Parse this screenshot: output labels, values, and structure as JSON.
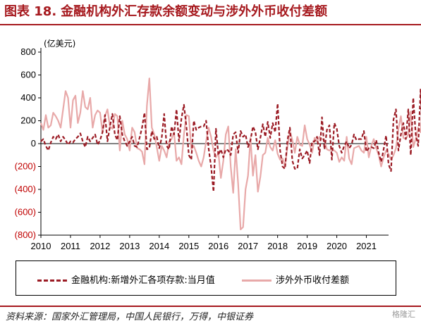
{
  "header": {
    "figure_label": "图表 18.",
    "title": "金融机构外汇存款余额变动与涉外外币收付差额"
  },
  "chart_data": {
    "type": "line",
    "unit_label": "(亿美元)",
    "ylim": [
      -800,
      800
    ],
    "yticks": [
      800,
      600,
      400,
      200,
      0,
      -200,
      -400,
      -600,
      -800
    ],
    "ytick_labels": [
      "800",
      "600",
      "400",
      "200",
      "0",
      "(200)",
      "(400)",
      "(600)",
      "(800)"
    ],
    "xlim": [
      2010,
      2021.75
    ],
    "xticks": [
      "2010",
      "2011",
      "2012",
      "2013",
      "2014",
      "2015",
      "2016",
      "2017",
      "2018",
      "2019",
      "2020",
      "2021"
    ],
    "x_start": "2010-01",
    "series": [
      {
        "name": "金融机构:新增外汇各项存款:当月值",
        "color": "#9b1b24",
        "style": "dashed",
        "values": [
          20,
          40,
          -20,
          -60,
          10,
          60,
          40,
          80,
          20,
          60,
          30,
          -10,
          20,
          10,
          40,
          60,
          90,
          20,
          -30,
          60,
          20,
          50,
          80,
          -10,
          30,
          100,
          250,
          20,
          150,
          260,
          80,
          30,
          240,
          80,
          20,
          -20,
          20,
          60,
          -20,
          -30,
          50,
          140,
          270,
          -50,
          -40,
          110,
          40,
          60,
          -40,
          50,
          260,
          -20,
          -50,
          150,
          80,
          300,
          20,
          220,
          340,
          150,
          -100,
          -140,
          200,
          120,
          140,
          150,
          150,
          200,
          -40,
          -200,
          -420,
          130,
          -100,
          -50,
          -120,
          -50,
          -60,
          -100,
          80,
          100,
          -80,
          110,
          60,
          80,
          -30,
          30,
          150,
          100,
          -50,
          50,
          170,
          60,
          190,
          50,
          180,
          100,
          350,
          -60,
          -200,
          -220,
          30,
          140,
          -150,
          -220,
          -220,
          -50,
          -130,
          -100,
          -60,
          -170,
          20,
          20,
          60,
          -100,
          230,
          -50,
          120,
          160,
          -140,
          180,
          130,
          -20,
          -80,
          -20,
          20,
          -40,
          -10,
          80,
          30,
          40,
          40,
          110,
          -70,
          -40,
          -30,
          -40,
          30,
          -80,
          -160,
          -50,
          70,
          -180,
          -240,
          210,
          300,
          -60,
          80,
          180,
          40,
          300,
          -100,
          400,
          80,
          -20,
          480,
          -100,
          -50,
          120,
          -120,
          -250
        ]
      },
      {
        "name": "涉外外币收付差额",
        "color": "#e8a9a9",
        "style": "solid",
        "values": [
          180,
          120,
          250,
          140,
          160,
          270,
          240,
          200,
          140,
          300,
          460,
          400,
          140,
          380,
          420,
          180,
          270,
          460,
          320,
          300,
          400,
          140,
          250,
          290,
          270,
          100,
          240,
          300,
          150,
          130,
          260,
          240,
          -60,
          200,
          80,
          40,
          -60,
          140,
          100,
          -40,
          -50,
          -70,
          -180,
          330,
          570,
          140,
          80,
          -30,
          -150,
          -20,
          -60,
          -120,
          20,
          40,
          100,
          -150,
          -120,
          -180,
          80,
          250,
          240,
          -50,
          -20,
          -80,
          -150,
          -200,
          -120,
          20,
          140,
          60,
          -60,
          -120,
          -80,
          -300,
          -150,
          80,
          150,
          -200,
          -430,
          -50,
          -350,
          -750,
          -730,
          -400,
          -280,
          50,
          -280,
          -100,
          -420,
          -290,
          -100,
          -80,
          50,
          -30,
          -60,
          30,
          -90,
          -140,
          -130,
          -200,
          -30,
          110,
          30,
          -80,
          60,
          -10,
          -20,
          160,
          40,
          -10,
          -80,
          50,
          20,
          60,
          40,
          30,
          -50,
          -60,
          -50,
          -60,
          -80,
          -160,
          -120,
          -150,
          60,
          -130,
          -180,
          -40,
          -30,
          -20,
          -60,
          -80,
          60,
          -120,
          -20,
          40,
          -40,
          -100,
          -200,
          -120,
          -60,
          -90,
          -140,
          -100,
          -40,
          130,
          240,
          50,
          40,
          80,
          280,
          -30,
          40,
          140,
          100,
          400,
          300,
          -80,
          160,
          120,
          140,
          110,
          -50,
          170,
          210,
          -180,
          -60,
          0,
          -80,
          -50,
          150,
          200,
          -20,
          -150,
          100,
          180,
          130,
          -20,
          220,
          530,
          -20,
          -40,
          260,
          250,
          -20
        ]
      }
    ]
  },
  "legend": {
    "item1": "金融机构:新增外汇各项存款:当月值",
    "item2": "涉外外币收付差额"
  },
  "footer": {
    "source": "资料来源：国家外汇管理局，中国人民银行，万得，中银证券",
    "watermark": "格隆汇"
  }
}
